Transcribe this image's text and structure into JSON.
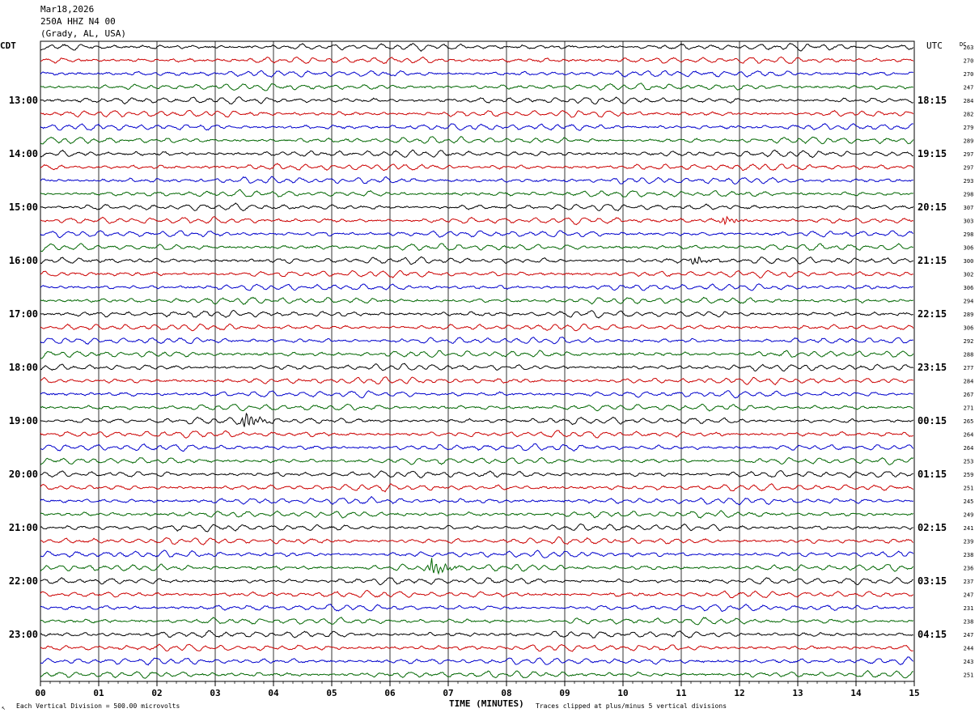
{
  "header": {
    "date": "Mar18,2026",
    "station": "250A HHZ N4 00",
    "location": "(Grady, AL, USA)",
    "left_tz": "CDT",
    "right_tz": "UTC",
    "dc_label": "DC"
  },
  "footer": {
    "scale_note": "Each Vertical Division =  500.00 microvolts",
    "axis_title": "TIME (MINUTES)",
    "clip_note": "Traces clipped at plus/minus 5 vertical divisions"
  },
  "chart_data": {
    "type": "line",
    "title": "250A HHZ N4 00",
    "xlabel": "TIME (MINUTES)",
    "xlim": [
      0,
      15
    ],
    "x_tick_labels": [
      "00",
      "01",
      "02",
      "03",
      "04",
      "05",
      "06",
      "07",
      "08",
      "09",
      "10",
      "11",
      "12",
      "13",
      "14",
      "15"
    ],
    "left_time_labels": [
      "13:00",
      "14:00",
      "15:00",
      "16:00",
      "17:00",
      "18:00",
      "19:00",
      "20:00",
      "21:00",
      "22:00",
      "23:00"
    ],
    "right_time_labels": [
      "18:15",
      "19:15",
      "20:15",
      "21:15",
      "22:15",
      "23:15",
      "00:15",
      "01:15",
      "02:15",
      "03:15",
      "04:15"
    ],
    "label_first_trace_index": 4,
    "traces_per_hour": 4,
    "trace_colors": [
      "#000000",
      "#cc0000",
      "#0000cc",
      "#006600"
    ],
    "dc_offsets": [
      263,
      270,
      270,
      247,
      284,
      282,
      279,
      289,
      297,
      297,
      293,
      298,
      307,
      303,
      298,
      306,
      300,
      302,
      306,
      294,
      289,
      306,
      292,
      288,
      277,
      284,
      267,
      271,
      265,
      264,
      264,
      253,
      259,
      251,
      245,
      249,
      241,
      239,
      238,
      236,
      237,
      247,
      231,
      238,
      247,
      244,
      243,
      251
    ],
    "events": [
      {
        "trace": 28,
        "minute": 3.5,
        "amplitude": 9
      },
      {
        "trace": 39,
        "minute": 6.7,
        "amplitude": 11
      },
      {
        "trace": 16,
        "minute": 11.2,
        "amplitude": 6
      },
      {
        "trace": 13,
        "minute": 11.7,
        "amplitude": 5
      }
    ],
    "grid": true
  }
}
